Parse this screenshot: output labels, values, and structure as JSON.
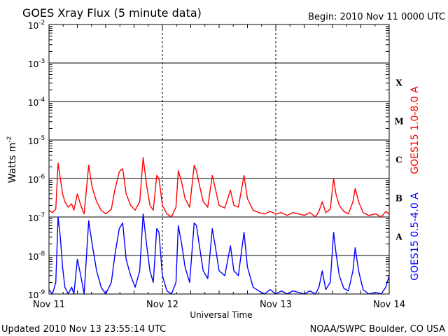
{
  "chart_data": {
    "type": "line",
    "title": "GOES Xray Flux (5 minute data)",
    "begin_label": "Begin:  2010 Nov 11 0000 UTC",
    "ylabel": "Watts m",
    "ylabel_exponent": "-2",
    "xlabel": "Universal Time",
    "y_scale": "log",
    "ylim": [
      1e-09,
      0.01
    ],
    "x_range_days": [
      "2010-11-11",
      "2010-11-14"
    ],
    "x_tick_labels": [
      "Nov 11",
      "Nov 12",
      "Nov 13",
      "Nov 14"
    ],
    "y_tick_labels": [
      {
        "base": "10",
        "exp": "-9"
      },
      {
        "base": "10",
        "exp": "-8"
      },
      {
        "base": "10",
        "exp": "-7"
      },
      {
        "base": "10",
        "exp": "-6"
      },
      {
        "base": "10",
        "exp": "-5"
      },
      {
        "base": "10",
        "exp": "-4"
      },
      {
        "base": "10",
        "exp": "-3"
      },
      {
        "base": "10",
        "exp": "-2"
      }
    ],
    "flare_classes": [
      "A",
      "B",
      "C",
      "M",
      "X"
    ],
    "grid": "horizontal lines at each decade, dashed vertical day markers",
    "series": [
      {
        "name": "GOES15 1.0-8.0 A",
        "color": "#ff0000",
        "points": [
          [
            0.0,
            1.5e-07
          ],
          [
            0.03,
            1.3e-07
          ],
          [
            0.06,
            1.6e-07
          ],
          [
            0.08,
            2.5e-06
          ],
          [
            0.1,
            1e-06
          ],
          [
            0.12,
            4e-07
          ],
          [
            0.14,
            2.5e-07
          ],
          [
            0.17,
            1.8e-07
          ],
          [
            0.2,
            2.2e-07
          ],
          [
            0.22,
            1.5e-07
          ],
          [
            0.25,
            4e-07
          ],
          [
            0.28,
            2e-07
          ],
          [
            0.31,
            1.2e-07
          ],
          [
            0.35,
            2.2e-06
          ],
          [
            0.38,
            6e-07
          ],
          [
            0.42,
            2.5e-07
          ],
          [
            0.46,
            1.5e-07
          ],
          [
            0.5,
            1.2e-07
          ],
          [
            0.55,
            1.6e-07
          ],
          [
            0.58,
            5e-07
          ],
          [
            0.62,
            1.5e-06
          ],
          [
            0.65,
            1.8e-06
          ],
          [
            0.68,
            4e-07
          ],
          [
            0.72,
            2e-07
          ],
          [
            0.76,
            1.5e-07
          ],
          [
            0.8,
            2.5e-07
          ],
          [
            0.83,
            3.5e-06
          ],
          [
            0.86,
            7e-07
          ],
          [
            0.89,
            2e-07
          ],
          [
            0.92,
            1.5e-07
          ],
          [
            0.95,
            1.2e-06
          ],
          [
            0.97,
            1e-06
          ],
          [
            1.0,
            2e-07
          ],
          [
            1.04,
            1.2e-07
          ],
          [
            1.08,
            1e-07
          ],
          [
            1.12,
            1.8e-07
          ],
          [
            1.14,
            1.6e-06
          ],
          [
            1.17,
            8e-07
          ],
          [
            1.2,
            3e-07
          ],
          [
            1.24,
            1.8e-07
          ],
          [
            1.28,
            2.2e-06
          ],
          [
            1.3,
            1.6e-06
          ],
          [
            1.33,
            6e-07
          ],
          [
            1.36,
            2.5e-07
          ],
          [
            1.4,
            1.8e-07
          ],
          [
            1.44,
            1.2e-06
          ],
          [
            1.47,
            5e-07
          ],
          [
            1.5,
            2e-07
          ],
          [
            1.55,
            1.7e-07
          ],
          [
            1.6,
            5e-07
          ],
          [
            1.63,
            2e-07
          ],
          [
            1.67,
            1.8e-07
          ],
          [
            1.72,
            1.2e-06
          ],
          [
            1.75,
            3e-07
          ],
          [
            1.8,
            1.5e-07
          ],
          [
            1.85,
            1.3e-07
          ],
          [
            1.9,
            1.2e-07
          ],
          [
            1.95,
            1.4e-07
          ],
          [
            2.0,
            1.2e-07
          ],
          [
            2.05,
            1.3e-07
          ],
          [
            2.1,
            1.1e-07
          ],
          [
            2.15,
            1.3e-07
          ],
          [
            2.2,
            1.2e-07
          ],
          [
            2.25,
            1.1e-07
          ],
          [
            2.3,
            1.3e-07
          ],
          [
            2.35,
            1e-07
          ],
          [
            2.38,
            1.4e-07
          ],
          [
            2.41,
            2.5e-07
          ],
          [
            2.44,
            1.3e-07
          ],
          [
            2.48,
            1.6e-07
          ],
          [
            2.51,
            1e-06
          ],
          [
            2.53,
            4e-07
          ],
          [
            2.56,
            2e-07
          ],
          [
            2.6,
            1.4e-07
          ],
          [
            2.64,
            1.2e-07
          ],
          [
            2.68,
            2.5e-07
          ],
          [
            2.7,
            5.5e-07
          ],
          [
            2.73,
            2.5e-07
          ],
          [
            2.77,
            1.3e-07
          ],
          [
            2.82,
            1.1e-07
          ],
          [
            2.88,
            1.2e-07
          ],
          [
            2.93,
            1e-07
          ],
          [
            2.97,
            1.4e-07
          ],
          [
            3.0,
            1.2e-07
          ]
        ]
      },
      {
        "name": "GOES15 0.5-4.0 A",
        "color": "#0000ff",
        "points": [
          [
            0.0,
            1.3e-09
          ],
          [
            0.03,
            1e-09
          ],
          [
            0.06,
            2e-09
          ],
          [
            0.08,
            1e-07
          ],
          [
            0.1,
            3e-08
          ],
          [
            0.12,
            5e-09
          ],
          [
            0.14,
            1.5e-09
          ],
          [
            0.17,
            1e-09
          ],
          [
            0.2,
            1.5e-09
          ],
          [
            0.22,
            1e-09
          ],
          [
            0.25,
            8e-09
          ],
          [
            0.28,
            3e-09
          ],
          [
            0.31,
            1e-09
          ],
          [
            0.35,
            8e-08
          ],
          [
            0.38,
            2e-08
          ],
          [
            0.42,
            4e-09
          ],
          [
            0.46,
            1.5e-09
          ],
          [
            0.5,
            1e-09
          ],
          [
            0.55,
            2e-09
          ],
          [
            0.58,
            1e-08
          ],
          [
            0.62,
            5e-08
          ],
          [
            0.65,
            7e-08
          ],
          [
            0.68,
            8e-09
          ],
          [
            0.72,
            3e-09
          ],
          [
            0.76,
            1.5e-09
          ],
          [
            0.8,
            4e-09
          ],
          [
            0.83,
            1.2e-07
          ],
          [
            0.86,
            2e-08
          ],
          [
            0.89,
            4e-09
          ],
          [
            0.92,
            2e-09
          ],
          [
            0.95,
            5e-08
          ],
          [
            0.97,
            4e-08
          ],
          [
            1.0,
            3e-09
          ],
          [
            1.04,
            1.2e-09
          ],
          [
            1.08,
            1e-09
          ],
          [
            1.12,
            2e-09
          ],
          [
            1.14,
            6e-08
          ],
          [
            1.17,
            2e-08
          ],
          [
            1.2,
            5e-09
          ],
          [
            1.24,
            2e-09
          ],
          [
            1.28,
            7e-08
          ],
          [
            1.3,
            6e-08
          ],
          [
            1.33,
            1.5e-08
          ],
          [
            1.36,
            4e-09
          ],
          [
            1.4,
            2.5e-09
          ],
          [
            1.44,
            5e-08
          ],
          [
            1.47,
            1.5e-08
          ],
          [
            1.5,
            4e-09
          ],
          [
            1.55,
            3e-09
          ],
          [
            1.6,
            1.8e-08
          ],
          [
            1.63,
            4e-09
          ],
          [
            1.67,
            3e-09
          ],
          [
            1.72,
            4e-08
          ],
          [
            1.75,
            5e-09
          ],
          [
            1.8,
            1.5e-09
          ],
          [
            1.85,
            1.2e-09
          ],
          [
            1.9,
            1e-09
          ],
          [
            1.95,
            1.3e-09
          ],
          [
            2.0,
            1e-09
          ],
          [
            2.05,
            1.2e-09
          ],
          [
            2.1,
            1e-09
          ],
          [
            2.15,
            1.2e-09
          ],
          [
            2.2,
            1.1e-09
          ],
          [
            2.25,
            1e-09
          ],
          [
            2.3,
            1.2e-09
          ],
          [
            2.35,
            1e-09
          ],
          [
            2.38,
            1.5e-09
          ],
          [
            2.41,
            4e-09
          ],
          [
            2.44,
            1.3e-09
          ],
          [
            2.48,
            2e-09
          ],
          [
            2.51,
            4e-08
          ],
          [
            2.53,
            1.2e-08
          ],
          [
            2.56,
            3e-09
          ],
          [
            2.6,
            1.4e-09
          ],
          [
            2.64,
            1.2e-09
          ],
          [
            2.68,
            4e-09
          ],
          [
            2.7,
            1.6e-08
          ],
          [
            2.73,
            4e-09
          ],
          [
            2.77,
            1.3e-09
          ],
          [
            2.82,
            1e-09
          ],
          [
            2.88,
            1.1e-09
          ],
          [
            2.93,
            1e-09
          ],
          [
            2.97,
            1.5e-09
          ],
          [
            3.0,
            3e-09
          ]
        ]
      }
    ]
  },
  "footer": {
    "updated": "Updated 2010 Nov 13 23:55:14 UTC",
    "source": "NOAA/SWPC Boulder, CO USA"
  }
}
